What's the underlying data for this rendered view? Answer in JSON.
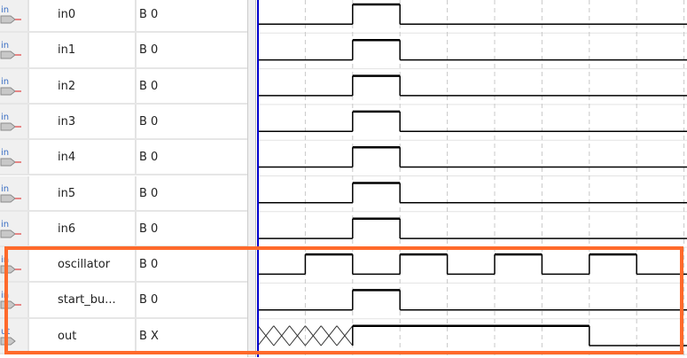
{
  "signals": [
    {
      "name": "in0",
      "value": "B 0",
      "direction": "in",
      "wave": {
        "initial": 0,
        "transitions": [
          [
            2,
            1
          ],
          [
            3,
            0
          ]
        ]
      }
    },
    {
      "name": "in1",
      "value": "B 0",
      "direction": "in",
      "wave": {
        "initial": 0,
        "transitions": [
          [
            2,
            1
          ],
          [
            3,
            0
          ]
        ]
      }
    },
    {
      "name": "in2",
      "value": "B 0",
      "direction": "in",
      "wave": {
        "initial": 0,
        "transitions": [
          [
            2,
            1
          ],
          [
            3,
            0
          ]
        ]
      }
    },
    {
      "name": "in3",
      "value": "B 0",
      "direction": "in",
      "wave": {
        "initial": 0,
        "transitions": [
          [
            2,
            1
          ],
          [
            3,
            0
          ]
        ]
      }
    },
    {
      "name": "in4",
      "value": "B 0",
      "direction": "in",
      "wave": {
        "initial": 0,
        "transitions": [
          [
            2,
            1
          ],
          [
            3,
            0
          ]
        ]
      }
    },
    {
      "name": "in5",
      "value": "B 0",
      "direction": "in",
      "wave": {
        "initial": 0,
        "transitions": [
          [
            2,
            1
          ],
          [
            3,
            0
          ]
        ]
      }
    },
    {
      "name": "in6",
      "value": "B 0",
      "direction": "in",
      "wave": {
        "initial": 0,
        "transitions": [
          [
            2,
            1
          ],
          [
            3,
            0
          ]
        ]
      }
    },
    {
      "name": "oscillator",
      "value": "B 0",
      "direction": "in",
      "wave": {
        "initial": 0,
        "transitions": [
          [
            1,
            1
          ],
          [
            2,
            0
          ],
          [
            3,
            1
          ],
          [
            4,
            0
          ],
          [
            5,
            1
          ],
          [
            6,
            0
          ],
          [
            7,
            1
          ],
          [
            8,
            0
          ]
        ]
      }
    },
    {
      "name": "start_bu...",
      "value": "B 0",
      "direction": "in",
      "wave": {
        "initial": 0,
        "transitions": [
          [
            2,
            1
          ],
          [
            3,
            0
          ]
        ]
      }
    },
    {
      "name": "out",
      "value": "B X",
      "direction": "out",
      "wave": {
        "initial": "X",
        "transitions": [
          [
            2,
            1
          ],
          [
            7,
            0
          ]
        ]
      }
    }
  ],
  "highlight_color": "#ff6a2b",
  "cursor_color": "#0000cc"
}
